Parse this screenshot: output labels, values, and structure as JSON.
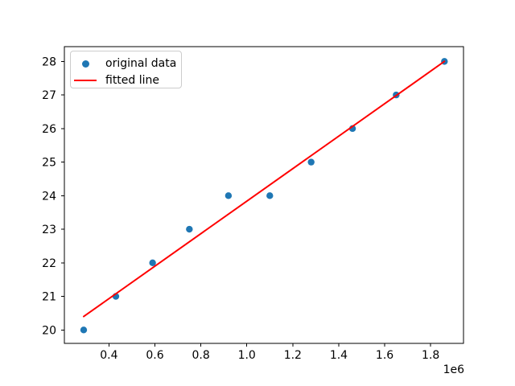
{
  "chart_data": {
    "type": "scatter",
    "title": "",
    "xlabel": "",
    "ylabel": "",
    "grid": false,
    "background": "#ffffff",
    "axis_color": "#000000",
    "xlim": [
      206000,
      1943000
    ],
    "ylim": [
      19.6,
      28.44
    ],
    "x_ticks": [
      400000,
      600000,
      800000,
      1000000,
      1200000,
      1400000,
      1600000,
      1800000
    ],
    "x_tick_labels": [
      "0.4",
      "0.6",
      "0.8",
      "1.0",
      "1.2",
      "1.4",
      "1.6",
      "1.8"
    ],
    "x_offset_label": "1e6",
    "y_ticks": [
      20,
      21,
      22,
      23,
      24,
      25,
      26,
      27,
      28
    ],
    "y_tick_labels": [
      "20",
      "21",
      "22",
      "23",
      "24",
      "25",
      "26",
      "27",
      "28"
    ],
    "series": [
      {
        "name": "original data",
        "type": "scatter",
        "color": "#1f77b4",
        "marker_radius": 4.2,
        "x": [
          290000,
          430000,
          590000,
          750000,
          920000,
          1100000,
          1280000,
          1460000,
          1650000,
          1860000
        ],
        "y": [
          20,
          21,
          22,
          23,
          24,
          24,
          25,
          26,
          27,
          28
        ]
      },
      {
        "name": "fitted line",
        "type": "line",
        "color": "#ff0000",
        "line_width": 2,
        "x": [
          290000,
          1860000
        ],
        "y": [
          20.4,
          28.0
        ]
      }
    ],
    "legend": {
      "position": "upper-left",
      "entries": [
        {
          "label": "original data",
          "swatch": "dot",
          "color": "#1f77b4"
        },
        {
          "label": "fitted line",
          "swatch": "line",
          "color": "#ff0000"
        }
      ]
    }
  }
}
